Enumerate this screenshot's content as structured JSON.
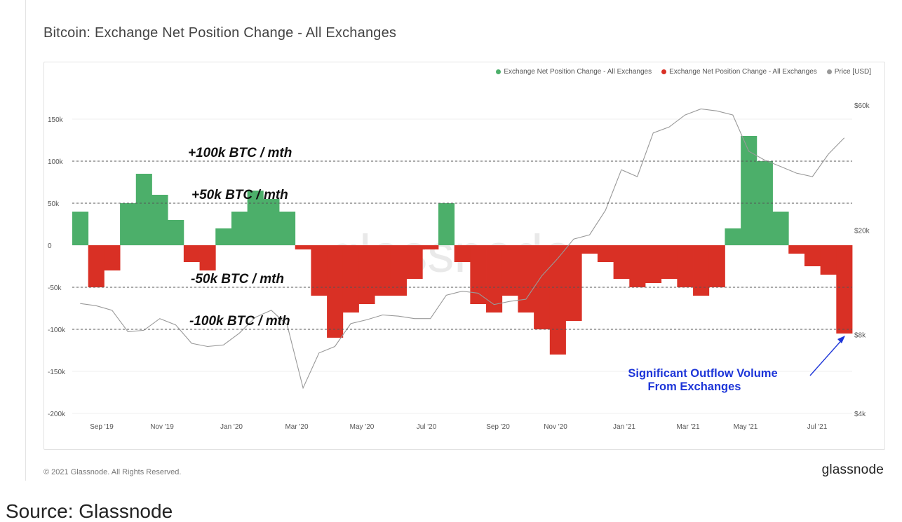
{
  "title": "Bitcoin: Exchange Net Position Change - All Exchanges",
  "legend": {
    "position": "top-right",
    "items": [
      {
        "label": "Exchange Net Position Change - All Exchanges",
        "color": "#4caf6a"
      },
      {
        "label": "Exchange Net Position Change - All Exchanges",
        "color": "#d93025"
      },
      {
        "label": "Price [USD]",
        "color": "#999999"
      }
    ]
  },
  "watermark": "glassnode",
  "footer": {
    "copyright": "© 2021 Glassnode. All Rights Reserved.",
    "logo": "glassnode"
  },
  "source": "Source: Glassnode",
  "chart_data": {
    "type": "area",
    "title": "Bitcoin: Exchange Net Position Change - All Exchanges",
    "xlabel": "",
    "ylabel": "",
    "ylim": [
      -200000,
      150000
    ],
    "y2_scale": "log",
    "y2_ticks": [
      "$60k",
      "$20k",
      "$8k",
      "$4k"
    ],
    "y2_tick_values": [
      60000,
      20000,
      8000,
      4000
    ],
    "y_ticks": [
      "150k",
      "100k",
      "50k",
      "0",
      "-50k",
      "-100k",
      "-150k",
      "-200k"
    ],
    "y_tick_values": [
      150000,
      100000,
      50000,
      0,
      -50000,
      -100000,
      -150000,
      -200000
    ],
    "x_ticks": [
      "Sep '19",
      "Nov '19",
      "Jan '20",
      "Mar '20",
      "May '20",
      "Jul '20",
      "Sep '20",
      "Nov '20",
      "Jan '21",
      "Mar '21",
      "May '21",
      "Jul '21"
    ],
    "x": [
      "2019-08",
      "2019-08",
      "2019-09",
      "2019-09",
      "2019-10",
      "2019-10",
      "2019-11",
      "2019-11",
      "2019-12",
      "2019-12",
      "2020-01",
      "2020-01",
      "2020-02",
      "2020-02",
      "2020-03",
      "2020-03",
      "2020-04",
      "2020-04",
      "2020-05",
      "2020-05",
      "2020-06",
      "2020-06",
      "2020-07",
      "2020-07",
      "2020-08",
      "2020-08",
      "2020-09",
      "2020-09",
      "2020-10",
      "2020-10",
      "2020-11",
      "2020-11",
      "2020-12",
      "2020-12",
      "2021-01",
      "2021-01",
      "2021-02",
      "2021-02",
      "2021-03",
      "2021-03",
      "2021-04",
      "2021-04",
      "2021-05",
      "2021-05",
      "2021-06",
      "2021-06",
      "2021-07",
      "2021-07",
      "2021-08"
    ],
    "series": [
      {
        "name": "Exchange Net Position Change - All Exchanges",
        "color_pos": "#4caf6a",
        "color_neg": "#d93025",
        "values": [
          40000,
          -50000,
          -30000,
          50000,
          85000,
          60000,
          30000,
          -20000,
          -30000,
          20000,
          40000,
          65000,
          55000,
          40000,
          -5000,
          -60000,
          -110000,
          -80000,
          -70000,
          -60000,
          -60000,
          -40000,
          -5000,
          50000,
          -20000,
          -70000,
          -80000,
          -60000,
          -80000,
          -100000,
          -130000,
          -90000,
          -10000,
          -20000,
          -40000,
          -50000,
          -45000,
          -40000,
          -50000,
          -60000,
          -50000,
          20000,
          130000,
          100000,
          40000,
          -10000,
          -25000,
          -35000,
          -105000
        ]
      },
      {
        "name": "Price [USD]",
        "color": "#999999",
        "values": [
          10500,
          10300,
          9900,
          8200,
          8300,
          9200,
          8700,
          7400,
          7200,
          7300,
          8100,
          9300,
          9900,
          8700,
          5000,
          6800,
          7200,
          8800,
          9100,
          9500,
          9400,
          9200,
          9200,
          11300,
          11700,
          11500,
          10400,
          10700,
          10900,
          13400,
          15600,
          18500,
          19200,
          23800,
          34000,
          32000,
          47000,
          49500,
          55000,
          58000,
          57000,
          55000,
          40000,
          37000,
          35000,
          33000,
          32000,
          39000,
          45000
        ]
      }
    ],
    "annotations": [
      {
        "text": "+100k BTC / mth",
        "y": 100000
      },
      {
        "text": "+50k BTC / mth",
        "y": 50000
      },
      {
        "text": "-50k BTC / mth",
        "y": -50000
      },
      {
        "text": "-100k BTC / mth",
        "y": -100000
      }
    ],
    "callout": {
      "lines": [
        "Significant Outflow Volume",
        "From Exchanges"
      ],
      "color": "#1d35d8"
    }
  }
}
